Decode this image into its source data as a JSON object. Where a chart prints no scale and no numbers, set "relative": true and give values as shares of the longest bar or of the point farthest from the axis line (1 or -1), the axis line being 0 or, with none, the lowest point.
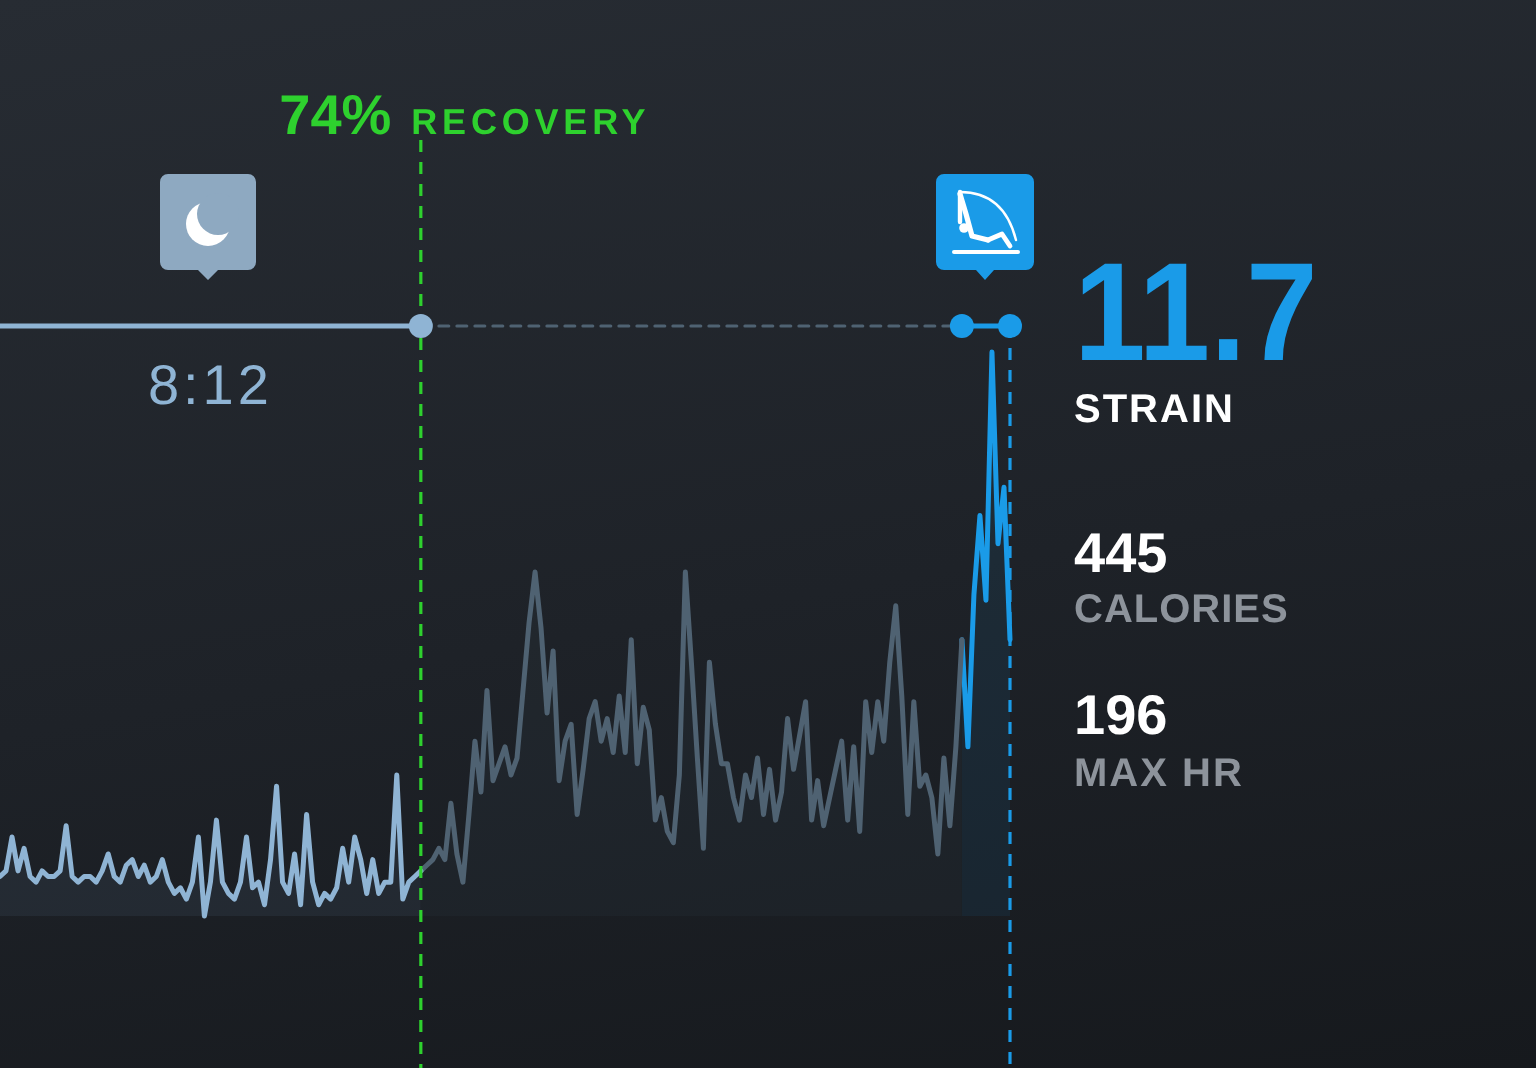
{
  "chart_data": {
    "type": "area",
    "relative": true,
    "marker": "none",
    "categories": [
      null,
      null,
      null,
      null,
      null,
      null,
      null,
      null,
      null,
      null,
      null,
      null,
      null,
      null,
      null,
      null,
      null,
      null,
      null,
      null,
      null,
      null,
      null,
      null,
      null,
      null,
      null,
      null,
      null,
      null,
      null,
      null,
      null,
      null,
      null,
      null,
      null,
      null,
      null,
      null,
      null,
      null,
      null,
      null,
      null,
      null,
      null,
      null,
      null,
      null,
      null,
      null,
      null,
      null,
      null,
      null,
      null,
      null,
      null,
      null,
      null,
      null,
      null,
      null,
      null,
      null,
      null,
      null,
      null,
      null,
      null,
      null,
      null,
      null,
      null,
      null,
      null,
      null,
      null,
      null,
      null,
      null,
      null,
      null,
      null,
      null,
      null,
      null,
      null,
      null,
      null,
      null,
      null,
      null,
      null,
      null,
      null,
      null,
      null,
      null,
      null,
      null,
      null,
      null,
      null,
      null,
      null,
      null,
      null,
      null,
      null,
      null,
      null,
      null,
      null,
      null,
      null,
      null,
      null,
      null,
      null,
      null,
      null,
      null,
      null,
      null,
      null,
      null,
      null,
      null,
      null,
      null,
      null,
      null,
      null,
      null,
      null,
      null,
      null,
      null,
      null,
      null,
      null,
      null,
      null,
      null,
      null,
      null,
      null,
      null,
      null,
      null,
      null,
      null,
      null,
      null,
      null,
      null,
      null,
      null,
      null,
      null,
      null,
      null,
      null,
      null,
      null,
      null,
      null
    ],
    "series": [
      {
        "color": "#8fb4d4",
        "values": [
          0.07,
          0.08,
          0.14,
          0.08,
          0.12,
          0.07,
          0.06,
          0.08,
          0.07,
          0.07,
          0.08,
          0.16,
          0.07,
          0.06,
          0.07,
          0.07,
          0.06,
          0.08,
          0.11,
          0.07,
          0.06,
          0.09,
          0.1,
          0.07,
          0.09,
          0.06,
          0.07,
          0.1,
          0.06,
          0.04,
          0.05,
          0.03,
          0.06,
          0.14,
          0,
          0.06,
          0.17,
          0.06,
          0.04,
          0.03,
          0.06,
          0.14,
          0.05,
          0.06,
          0.02,
          0.1,
          0.23,
          0.06,
          0.04,
          0.11,
          0.02,
          0.18,
          0.06,
          0.02,
          0.04,
          0.03,
          0.05,
          0.12,
          0.06,
          0.14,
          0.1,
          0.04,
          0.1,
          0.04,
          0.06,
          0.06,
          0.25,
          0.03,
          0.06,
          0.07,
          0.08,
          null,
          null,
          null,
          null,
          null,
          null,
          null,
          null,
          null,
          null,
          null,
          null,
          null,
          null,
          null,
          null,
          null,
          null,
          null,
          null,
          null,
          null,
          null,
          null,
          null,
          null,
          null,
          null,
          null,
          null,
          null,
          null,
          null,
          null,
          null,
          null,
          null,
          null,
          null,
          null,
          null,
          null,
          null,
          null,
          null,
          null,
          null,
          null,
          null,
          null,
          null,
          null,
          null,
          null,
          null,
          null,
          null,
          null,
          null,
          null,
          null,
          null,
          null,
          null,
          null,
          null,
          null,
          null,
          null,
          null,
          null,
          null,
          null,
          null,
          null,
          null,
          null,
          null,
          null,
          null,
          null,
          null,
          null,
          null,
          null,
          null,
          null,
          null,
          null,
          null,
          null,
          null,
          null,
          null,
          null,
          null,
          null,
          null
        ]
      },
      {
        "color": "#4f6272",
        "values": [
          null,
          null,
          null,
          null,
          null,
          null,
          null,
          null,
          null,
          null,
          null,
          null,
          null,
          null,
          null,
          null,
          null,
          null,
          null,
          null,
          null,
          null,
          null,
          null,
          null,
          null,
          null,
          null,
          null,
          null,
          null,
          null,
          null,
          null,
          null,
          null,
          null,
          null,
          null,
          null,
          null,
          null,
          null,
          null,
          null,
          null,
          null,
          null,
          null,
          null,
          null,
          null,
          null,
          null,
          null,
          null,
          null,
          null,
          null,
          null,
          null,
          null,
          null,
          null,
          null,
          null,
          null,
          null,
          null,
          null,
          0.08,
          0.09,
          0.1,
          0.12,
          0.1,
          0.2,
          0.11,
          0.06,
          0.18,
          0.31,
          0.22,
          0.4,
          0.24,
          0.27,
          0.3,
          0.25,
          0.28,
          0.4,
          0.52,
          0.61,
          0.51,
          0.36,
          0.47,
          0.24,
          0.31,
          0.34,
          0.18,
          0.26,
          0.35,
          0.38,
          0.31,
          0.35,
          0.29,
          0.39,
          0.29,
          0.49,
          0.27,
          0.37,
          0.33,
          0.17,
          0.21,
          0.15,
          0.13,
          0.25,
          0.61,
          0.45,
          0.28,
          0.12,
          0.45,
          0.34,
          0.27,
          0.27,
          0.21,
          0.17,
          0.25,
          0.21,
          0.28,
          0.18,
          0.26,
          0.17,
          0.22,
          0.35,
          0.26,
          0.32,
          0.38,
          0.17,
          0.24,
          0.16,
          0.21,
          0.26,
          0.31,
          0.17,
          0.3,
          0.15,
          0.38,
          0.29,
          0.38,
          0.31,
          0.45,
          0.55,
          0.39,
          0.18,
          0.38,
          0.23,
          0.25,
          0.21,
          0.11,
          0.28,
          0.16,
          0.3,
          0.49,
          null,
          null,
          null,
          null,
          null,
          null,
          null,
          null
        ]
      },
      {
        "color": "#1a9be8",
        "values": [
          null,
          null,
          null,
          null,
          null,
          null,
          null,
          null,
          null,
          null,
          null,
          null,
          null,
          null,
          null,
          null,
          null,
          null,
          null,
          null,
          null,
          null,
          null,
          null,
          null,
          null,
          null,
          null,
          null,
          null,
          null,
          null,
          null,
          null,
          null,
          null,
          null,
          null,
          null,
          null,
          null,
          null,
          null,
          null,
          null,
          null,
          null,
          null,
          null,
          null,
          null,
          null,
          null,
          null,
          null,
          null,
          null,
          null,
          null,
          null,
          null,
          null,
          null,
          null,
          null,
          null,
          null,
          null,
          null,
          null,
          null,
          null,
          null,
          null,
          null,
          null,
          null,
          null,
          null,
          null,
          null,
          null,
          null,
          null,
          null,
          null,
          null,
          null,
          null,
          null,
          null,
          null,
          null,
          null,
          null,
          null,
          null,
          null,
          null,
          null,
          null,
          null,
          null,
          null,
          null,
          null,
          null,
          null,
          null,
          null,
          null,
          null,
          null,
          null,
          null,
          null,
          null,
          null,
          null,
          null,
          null,
          null,
          null,
          null,
          null,
          null,
          null,
          null,
          null,
          null,
          null,
          null,
          null,
          null,
          null,
          null,
          null,
          null,
          null,
          null,
          null,
          null,
          null,
          null,
          null,
          null,
          null,
          null,
          null,
          null,
          null,
          null,
          null,
          null,
          null,
          null,
          null,
          null,
          null,
          null,
          0.49,
          0.3,
          0.57,
          0.71,
          0.56,
          1,
          0.66,
          0.76,
          0.49
        ]
      }
    ],
    "annotations": [
      "74% RECOVERY",
      "8:12",
      "11.7",
      "STRAIN",
      "445",
      "CALORIES",
      "196",
      "MAX HR"
    ]
  }
}
